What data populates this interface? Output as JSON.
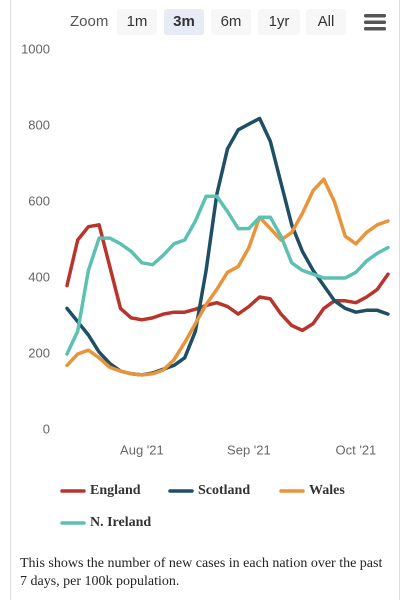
{
  "toolbar": {
    "label": "Zoom",
    "buttons": [
      "1m",
      "3m",
      "6m",
      "1yr",
      "All"
    ],
    "selected": "3m"
  },
  "chart_data": {
    "type": "line",
    "categories": [
      null,
      null,
      null,
      null,
      null,
      null,
      null,
      "Aug '21",
      null,
      null,
      null,
      null,
      null,
      null,
      null,
      null,
      null,
      "Sep '21",
      null,
      null,
      null,
      null,
      null,
      null,
      null,
      null,
      null,
      "Oct '21",
      null,
      null,
      null
    ],
    "series": [
      {
        "name": "England",
        "color": "#b8352b",
        "values": [
          380,
          500,
          535,
          540,
          430,
          320,
          295,
          290,
          295,
          305,
          310,
          310,
          318,
          328,
          335,
          325,
          305,
          325,
          350,
          345,
          305,
          275,
          262,
          280,
          320,
          340,
          340,
          335,
          350,
          370,
          410
        ]
      },
      {
        "name": "Scotland",
        "color": "#1f4f65",
        "values": [
          320,
          285,
          250,
          205,
          175,
          155,
          148,
          145,
          150,
          160,
          170,
          190,
          260,
          420,
          620,
          740,
          790,
          805,
          820,
          760,
          650,
          540,
          470,
          420,
          380,
          340,
          320,
          310,
          315,
          315,
          305
        ]
      },
      {
        "name": "Wales",
        "color": "#e8943a",
        "values": [
          170,
          200,
          210,
          190,
          165,
          155,
          148,
          145,
          148,
          158,
          185,
          230,
          280,
          330,
          370,
          415,
          430,
          480,
          560,
          530,
          500,
          520,
          570,
          630,
          660,
          600,
          510,
          490,
          520,
          540,
          550
        ]
      },
      {
        "name": "N. Ireland",
        "color": "#5cc1b2",
        "values": [
          200,
          260,
          420,
          505,
          505,
          490,
          470,
          440,
          435,
          460,
          490,
          500,
          550,
          615,
          615,
          575,
          530,
          530,
          560,
          560,
          510,
          440,
          420,
          410,
          400,
          400,
          400,
          415,
          445,
          465,
          480
        ]
      }
    ],
    "ylim": [
      0,
      1000
    ],
    "yticks": [
      0,
      200,
      400,
      600,
      800,
      1000
    ],
    "grid": false,
    "caption": "This shows the number of new cases in each nation over the past 7 days, per 100k population."
  }
}
